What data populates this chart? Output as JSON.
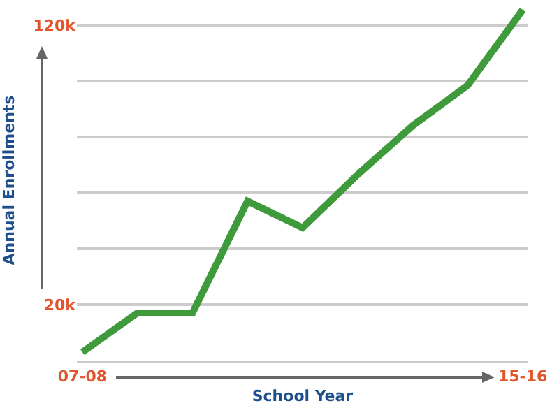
{
  "chart_data": {
    "type": "line",
    "xlabel": "School Year",
    "ylabel": "Annual Enrollments",
    "categories": [
      "07-08",
      null,
      null,
      null,
      null,
      null,
      null,
      null,
      "15-16"
    ],
    "series": [
      {
        "color": "#3f9a3c",
        "values": [
          3000,
          17000,
          17000,
          57000,
          47500,
          66500,
          84000,
          98500,
          125500
        ]
      }
    ],
    "ylim": [
      0,
      129000
    ],
    "yticks": [
      {
        "value": 0,
        "label": null
      },
      {
        "value": 20000,
        "label": "20k"
      },
      {
        "value": 40000,
        "label": null
      },
      {
        "value": 60000,
        "label": null
      },
      {
        "value": 80000,
        "label": null
      },
      {
        "value": 100000,
        "label": null
      },
      {
        "value": 120000,
        "label": "120k"
      }
    ],
    "grid": "y",
    "legend": false,
    "marker": "none",
    "line_style": "solid"
  }
}
